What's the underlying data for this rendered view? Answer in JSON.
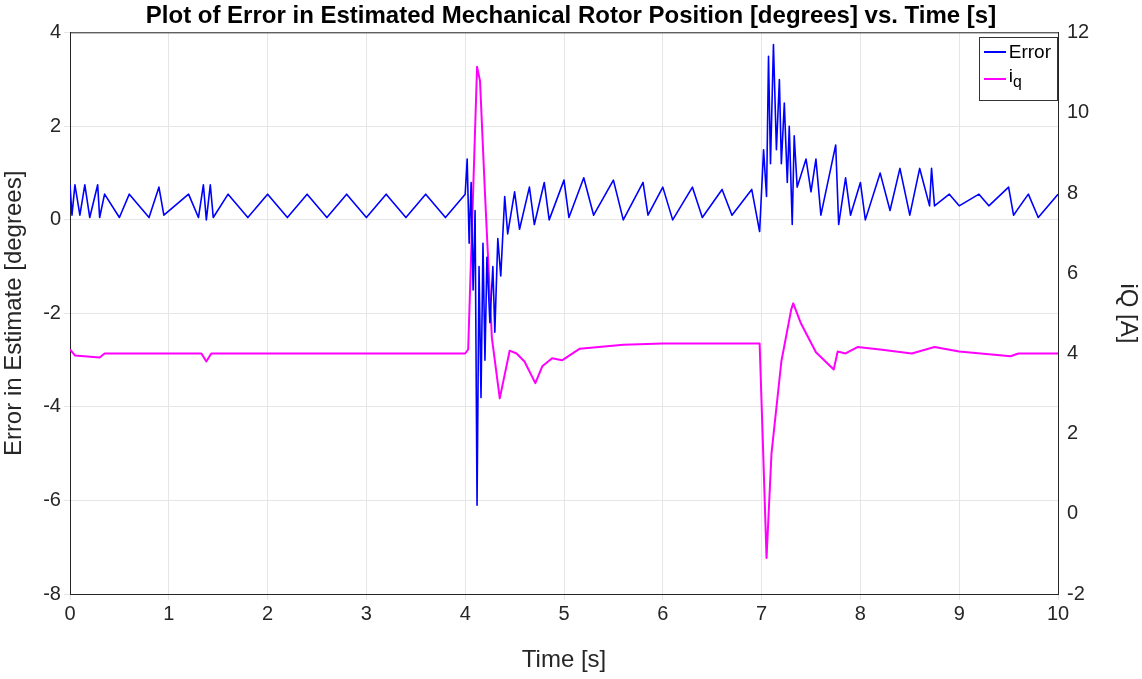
{
  "chart_data": {
    "type": "line",
    "title": "Plot of Error in Estimated Mechanical Rotor Position [degrees] vs. Time [s]",
    "xlabel": "Time [s]",
    "ylabel": "Error in Estimate [degrees]",
    "y2label": "iQ [A]",
    "xlim": [
      0,
      10
    ],
    "xticks": [
      0,
      1,
      2,
      3,
      4,
      5,
      6,
      7,
      8,
      9,
      10
    ],
    "ylim": [
      -8,
      4
    ],
    "yticks": [
      -8,
      -6,
      -4,
      -2,
      0,
      2,
      4
    ],
    "y2lim": [
      -2,
      12
    ],
    "y2ticks": [
      -2,
      0,
      2,
      4,
      6,
      8,
      10,
      12
    ],
    "grid": true,
    "legend": "top right",
    "marker": "none",
    "line_style": "solid",
    "series": [
      {
        "name": "Error",
        "color": "#0000ff",
        "x": [
          0,
          0.02,
          0.05,
          0.1,
          0.15,
          0.2,
          0.28,
          0.3,
          0.35,
          0.5,
          0.6,
          0.8,
          0.9,
          0.95,
          1.2,
          1.3,
          1.35,
          1.38,
          1.42,
          1.45,
          1.6,
          1.8,
          2.0,
          2.2,
          2.4,
          2.6,
          2.8,
          3.0,
          3.2,
          3.4,
          3.6,
          3.8,
          4.0,
          4.02,
          4.04,
          4.06,
          4.08,
          4.1,
          4.12,
          4.14,
          4.16,
          4.18,
          4.2,
          4.22,
          4.25,
          4.28,
          4.3,
          4.33,
          4.36,
          4.4,
          4.43,
          4.5,
          4.55,
          4.65,
          4.7,
          4.8,
          4.85,
          5.0,
          5.05,
          5.2,
          5.3,
          5.5,
          5.6,
          5.8,
          5.85,
          6.0,
          6.1,
          6.3,
          6.4,
          6.6,
          6.7,
          6.9,
          6.98,
          7.02,
          7.05,
          7.07,
          7.09,
          7.12,
          7.15,
          7.18,
          7.2,
          7.23,
          7.26,
          7.28,
          7.31,
          7.33,
          7.36,
          7.45,
          7.5,
          7.55,
          7.6,
          7.7,
          7.75,
          7.78,
          7.85,
          7.9,
          8.0,
          8.05,
          8.2,
          8.3,
          8.4,
          8.5,
          8.6,
          8.7,
          8.72,
          8.75,
          8.9,
          9.0,
          9.2,
          9.3,
          9.5,
          9.55,
          9.7,
          9.8,
          10
        ],
        "values": [
          0.75,
          0.1,
          0.75,
          0.1,
          0.75,
          0.05,
          0.75,
          0.05,
          0.55,
          0.05,
          0.55,
          0.05,
          0.7,
          0.1,
          0.55,
          0.05,
          0.75,
          0.0,
          0.75,
          0.05,
          0.55,
          0.05,
          0.55,
          0.05,
          0.55,
          0.05,
          0.55,
          0.05,
          0.55,
          0.05,
          0.55,
          0.05,
          0.55,
          1.3,
          -0.5,
          0.8,
          -1.5,
          0.2,
          -6.1,
          -1.0,
          -3.8,
          -0.5,
          -3.0,
          -0.8,
          -2.2,
          -1.0,
          -2.4,
          -0.4,
          -1.2,
          0.5,
          -0.3,
          0.6,
          -0.2,
          0.7,
          -0.1,
          0.8,
          0.0,
          0.85,
          0.05,
          0.9,
          0.1,
          0.85,
          0.0,
          0.8,
          0.1,
          0.7,
          0.0,
          0.7,
          0.05,
          0.65,
          0.1,
          0.65,
          -0.25,
          1.5,
          0.5,
          3.5,
          1.2,
          3.75,
          1.5,
          3.0,
          1.2,
          2.5,
          0.8,
          2.0,
          -0.1,
          1.8,
          0.7,
          1.3,
          0.6,
          1.3,
          0.1,
          1.1,
          1.6,
          -0.1,
          0.9,
          0.1,
          0.8,
          0.0,
          1.0,
          0.2,
          1.1,
          0.1,
          1.1,
          0.3,
          1.1,
          0.3,
          0.55,
          0.3,
          0.55,
          0.3,
          0.7,
          0.1,
          0.55,
          0.05,
          0.55
        ]
      },
      {
        "name": "i$_{q}$",
        "color": "#ff00ff",
        "axis": "y2",
        "x": [
          0,
          0.05,
          0.3,
          0.35,
          1.33,
          1.38,
          1.43,
          4.0,
          4.03,
          4.12,
          4.15,
          4.2,
          4.27,
          4.35,
          4.45,
          4.52,
          4.6,
          4.71,
          4.78,
          4.88,
          4.98,
          5.16,
          5.6,
          6.0,
          6.5,
          6.98,
          7.01,
          7.05,
          7.1,
          7.2,
          7.3,
          7.32,
          7.4,
          7.55,
          7.73,
          7.77,
          7.85,
          7.97,
          8.2,
          8.52,
          8.75,
          9.0,
          9.52,
          9.6,
          10
        ],
        "values": [
          4.1,
          3.95,
          3.9,
          4.0,
          4.0,
          3.8,
          4.0,
          4.0,
          4.1,
          11.15,
          10.8,
          8.0,
          4.39,
          2.88,
          4.07,
          4.0,
          3.8,
          3.26,
          3.68,
          3.88,
          3.83,
          4.12,
          4.22,
          4.25,
          4.25,
          4.25,
          2.0,
          -1.1,
          1.5,
          3.8,
          5.1,
          5.25,
          4.74,
          4.03,
          3.6,
          4.05,
          4.0,
          4.16,
          4.1,
          4.0,
          4.16,
          4.05,
          3.93,
          4.0,
          4.0
        ]
      }
    ]
  }
}
